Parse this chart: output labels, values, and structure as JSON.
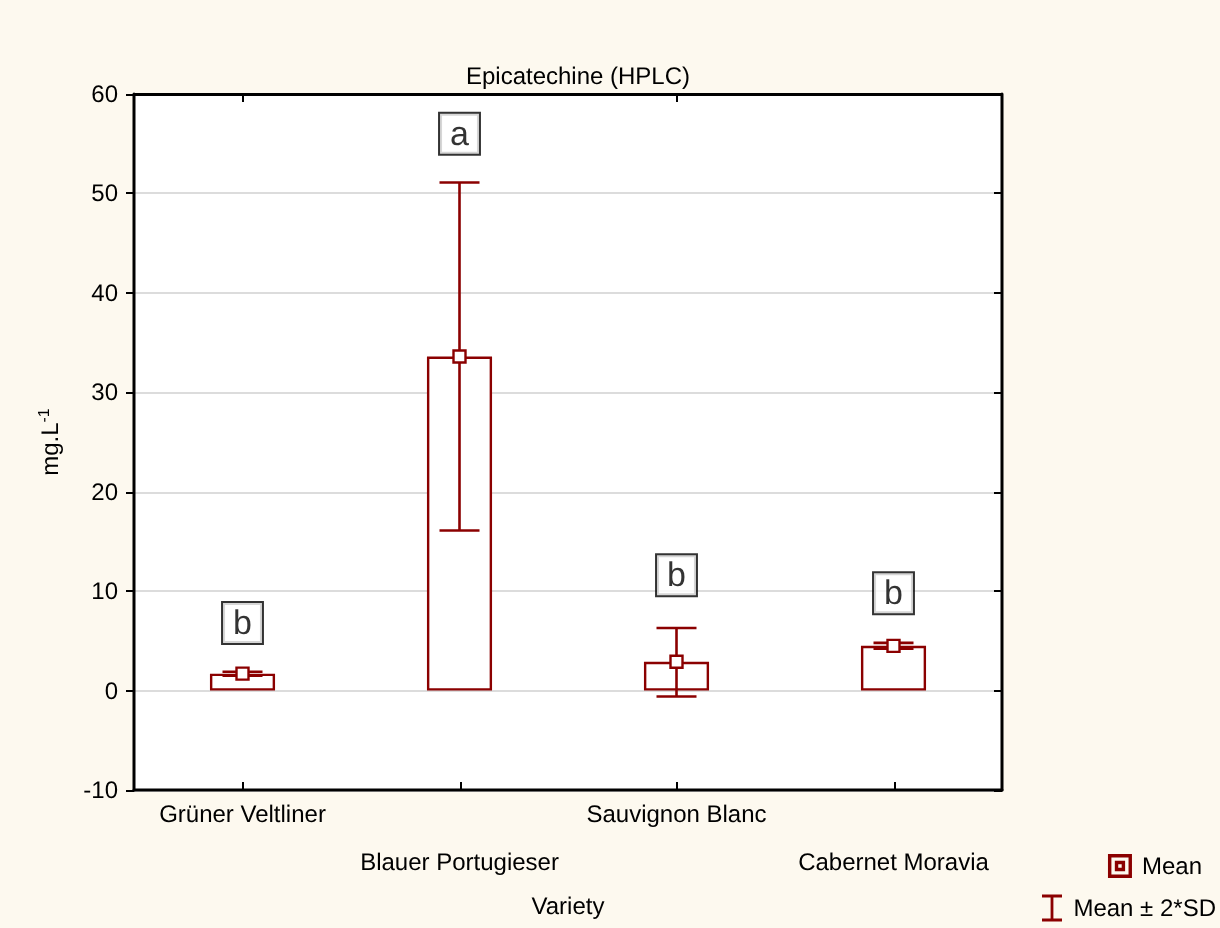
{
  "chart_data": {
    "type": "bar",
    "title": "Epicatechine (HPLC)",
    "xlabel": "Variety",
    "ylabel": "mg.L$^{-1}$",
    "categories": [
      "Grüner Veltliner",
      "Blauer Portugieser",
      "Sauvignon Blanc",
      "Cabernet Moravia"
    ],
    "series": [
      {
        "color": "#8b0000",
        "values": [
          1.7,
          33.6,
          2.9,
          4.5
        ]
      },
      {
        "type": "scatter",
        "name": "Mean",
        "color": "#8b0000",
        "marker": "square",
        "x": [
          "Grüner Veltliner",
          "Blauer Portugieser",
          "Sauvignon Blanc",
          "Cabernet Moravia"
        ],
        "values": [
          1.7,
          33.6,
          2.9,
          4.5
        ],
        "errors": [
          [
            1.5,
            1.9
          ],
          [
            16.1,
            51.1
          ],
          [
            -0.6,
            6.3
          ],
          [
            4.2,
            4.8
          ]
        ]
      }
    ],
    "ylim": [
      -10,
      60
    ],
    "yticks": [
      -10,
      0,
      10,
      20,
      30,
      40,
      50,
      60
    ],
    "grid": "y",
    "legend": "bottom right",
    "annotations": [
      {
        "text": "b",
        "x": "Grüner Veltliner",
        "y": 6.8
      },
      {
        "text": "a",
        "x": "Blauer Portugieser",
        "y": 56
      },
      {
        "text": "b",
        "x": "Sauvignon Blanc",
        "y": 11.6
      },
      {
        "text": "b",
        "x": "Cabernet Moravia",
        "y": 9.8
      },
      "Mean ± 2*SD"
    ]
  }
}
